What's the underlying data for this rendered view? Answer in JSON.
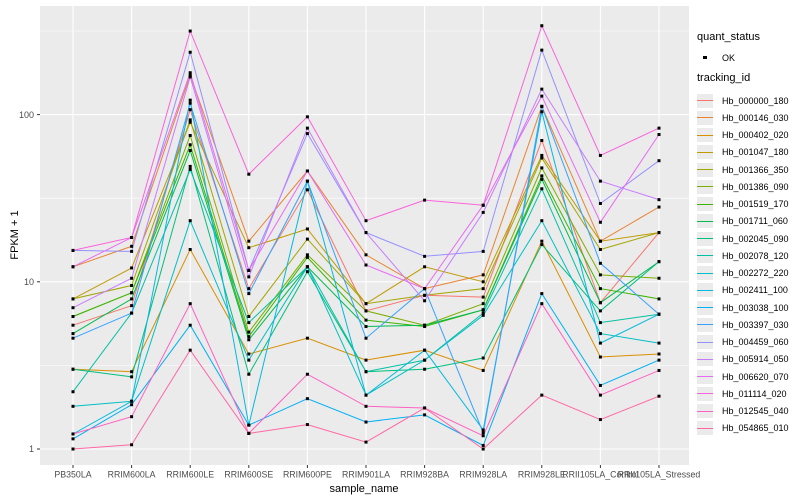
{
  "chart_data": {
    "type": "line",
    "title": "",
    "x_label": "sample_name",
    "y_label": "FPKM + 1",
    "y_scale": "log10",
    "y_ticks": [
      1,
      10,
      100
    ],
    "y_minor_ticks": [
      3.162,
      31.62,
      316.2
    ],
    "ylim": [
      0.78,
      430
    ],
    "grid": true,
    "legend_position": "right",
    "point": {
      "shape": "square",
      "color": "#000000",
      "legend_label": "OK"
    },
    "categories": [
      "PB350LA",
      "RRIM600LA",
      "RRIM600LE",
      "RRIM600SE",
      "RRIM600PE",
      "RRIM901LA",
      "RRIM928BA",
      "RRIM928LA",
      "RRIM928LE",
      "RRII105LA_Control",
      "RRII105LA_Stressed"
    ],
    "series": [
      {
        "name": "Hb_000000_180",
        "color": "#F8766D",
        "values": [
          5.5,
          7.2,
          107,
          9.1,
          35.5,
          6.7,
          8.3,
          8.1,
          70,
          7.5,
          19.7
        ]
      },
      {
        "name": "Hb_000146_030",
        "color": "#EA8331",
        "values": [
          12.3,
          16.3,
          172,
          17.5,
          46,
          14.5,
          9.1,
          11,
          112,
          17.5,
          28
        ]
      },
      {
        "name": "Hb_000402_020",
        "color": "#D89000",
        "values": [
          3.0,
          2.9,
          15.6,
          3.7,
          4.6,
          3.4,
          3.9,
          2.95,
          17.5,
          3.55,
          3.7
        ]
      },
      {
        "name": "Hb_001047_180",
        "color": "#C09B00",
        "values": [
          7.9,
          12.1,
          90,
          16,
          20.7,
          7.4,
          12.3,
          10,
          57,
          17.5,
          19.7
        ]
      },
      {
        "name": "Hb_001366_350",
        "color": "#A3A500",
        "values": [
          7.9,
          9.5,
          93,
          6.2,
          18,
          7.4,
          8.3,
          9.1,
          55,
          15.6,
          19.7
        ]
      },
      {
        "name": "Hb_001386_090",
        "color": "#7CAE00",
        "values": [
          6.2,
          8.6,
          75,
          5.0,
          14.5,
          6.7,
          5.5,
          7.4,
          48,
          11,
          10.5
        ]
      },
      {
        "name": "Hb_001519_170",
        "color": "#39B600",
        "values": [
          6.2,
          8.6,
          66,
          4.7,
          14,
          5.9,
          5.4,
          6.8,
          43,
          9.1,
          7.9
        ]
      },
      {
        "name": "Hb_001711_060",
        "color": "#00BB4E",
        "values": [
          4.9,
          7.9,
          61,
          4.5,
          12.3,
          5.4,
          5.5,
          6.8,
          41,
          7.5,
          13.2
        ]
      },
      {
        "name": "Hb_002045_090",
        "color": "#00BF7D",
        "values": [
          3.0,
          2.7,
          49,
          2.8,
          11.5,
          2.9,
          3.0,
          3.5,
          16.7,
          6.7,
          13.2
        ]
      },
      {
        "name": "Hb_002078_120",
        "color": "#00C1A3",
        "values": [
          2.2,
          6.5,
          47,
          5.7,
          12.3,
          2.9,
          3.4,
          6.5,
          36,
          5.7,
          6.4
        ]
      },
      {
        "name": "Hb_002272_220",
        "color": "#00BFC4",
        "values": [
          1.8,
          1.93,
          23.2,
          3.4,
          12.3,
          2.1,
          3.4,
          6.3,
          23.2,
          4.9,
          4.3
        ]
      },
      {
        "name": "Hb_002411_100",
        "color": "#00BADE",
        "values": [
          1.23,
          1.93,
          122,
          1.39,
          40,
          2.1,
          3.9,
          1.3,
          104,
          4.3,
          6.4
        ]
      },
      {
        "name": "Hb_003038_100",
        "color": "#00B0F6",
        "values": [
          1.15,
          1.84,
          5.5,
          1.39,
          2.0,
          1.45,
          1.6,
          1.05,
          8.5,
          2.4,
          3.4
        ]
      },
      {
        "name": "Hb_003397_030",
        "color": "#35A2FF",
        "values": [
          4.6,
          6.5,
          117,
          8.5,
          40,
          4.6,
          9.1,
          1.25,
          112,
          12.9,
          6.4
        ]
      },
      {
        "name": "Hb_004459_060",
        "color": "#9590FF",
        "values": [
          15.4,
          15.2,
          236,
          11.7,
          77,
          19.7,
          14.2,
          15.2,
          243,
          29.4,
          53
        ]
      },
      {
        "name": "Hb_005914_050",
        "color": "#C77CFF",
        "values": [
          7.0,
          10.5,
          168,
          10.7,
          83,
          19.7,
          7.7,
          26,
          142,
          40,
          31
        ]
      },
      {
        "name": "Hb_006620_070",
        "color": "#E76BF3",
        "values": [
          12.3,
          18.4,
          178,
          11.7,
          46,
          12.6,
          9.1,
          28.7,
          129,
          22.7,
          76
        ]
      },
      {
        "name": "Hb_011114_020",
        "color": "#FA62DB",
        "values": [
          15.4,
          18.4,
          316,
          44,
          97,
          23.2,
          30.8,
          28.7,
          340,
          57,
          83
        ]
      },
      {
        "name": "Hb_012545_040",
        "color": "#FF61C3",
        "values": [
          1.23,
          1.56,
          7.4,
          1.24,
          2.8,
          1.8,
          1.76,
          1.2,
          7.4,
          2.1,
          2.95
        ]
      },
      {
        "name": "Hb_054865_010",
        "color": "#FF67A4",
        "values": [
          1.0,
          1.06,
          3.9,
          1.24,
          1.4,
          1.1,
          1.76,
          1.0,
          2.1,
          1.5,
          2.07
        ]
      }
    ]
  },
  "legend": {
    "quant_status_title": "quant_status",
    "quant_status_entries": [
      {
        "label": "OK"
      }
    ],
    "tracking_id_title": "tracking_id"
  },
  "colors": {
    "panel_bg": "#EBEBEB",
    "grid": "#FFFFFF",
    "tick": "#333333",
    "tick_label": "#4D4D4D"
  }
}
